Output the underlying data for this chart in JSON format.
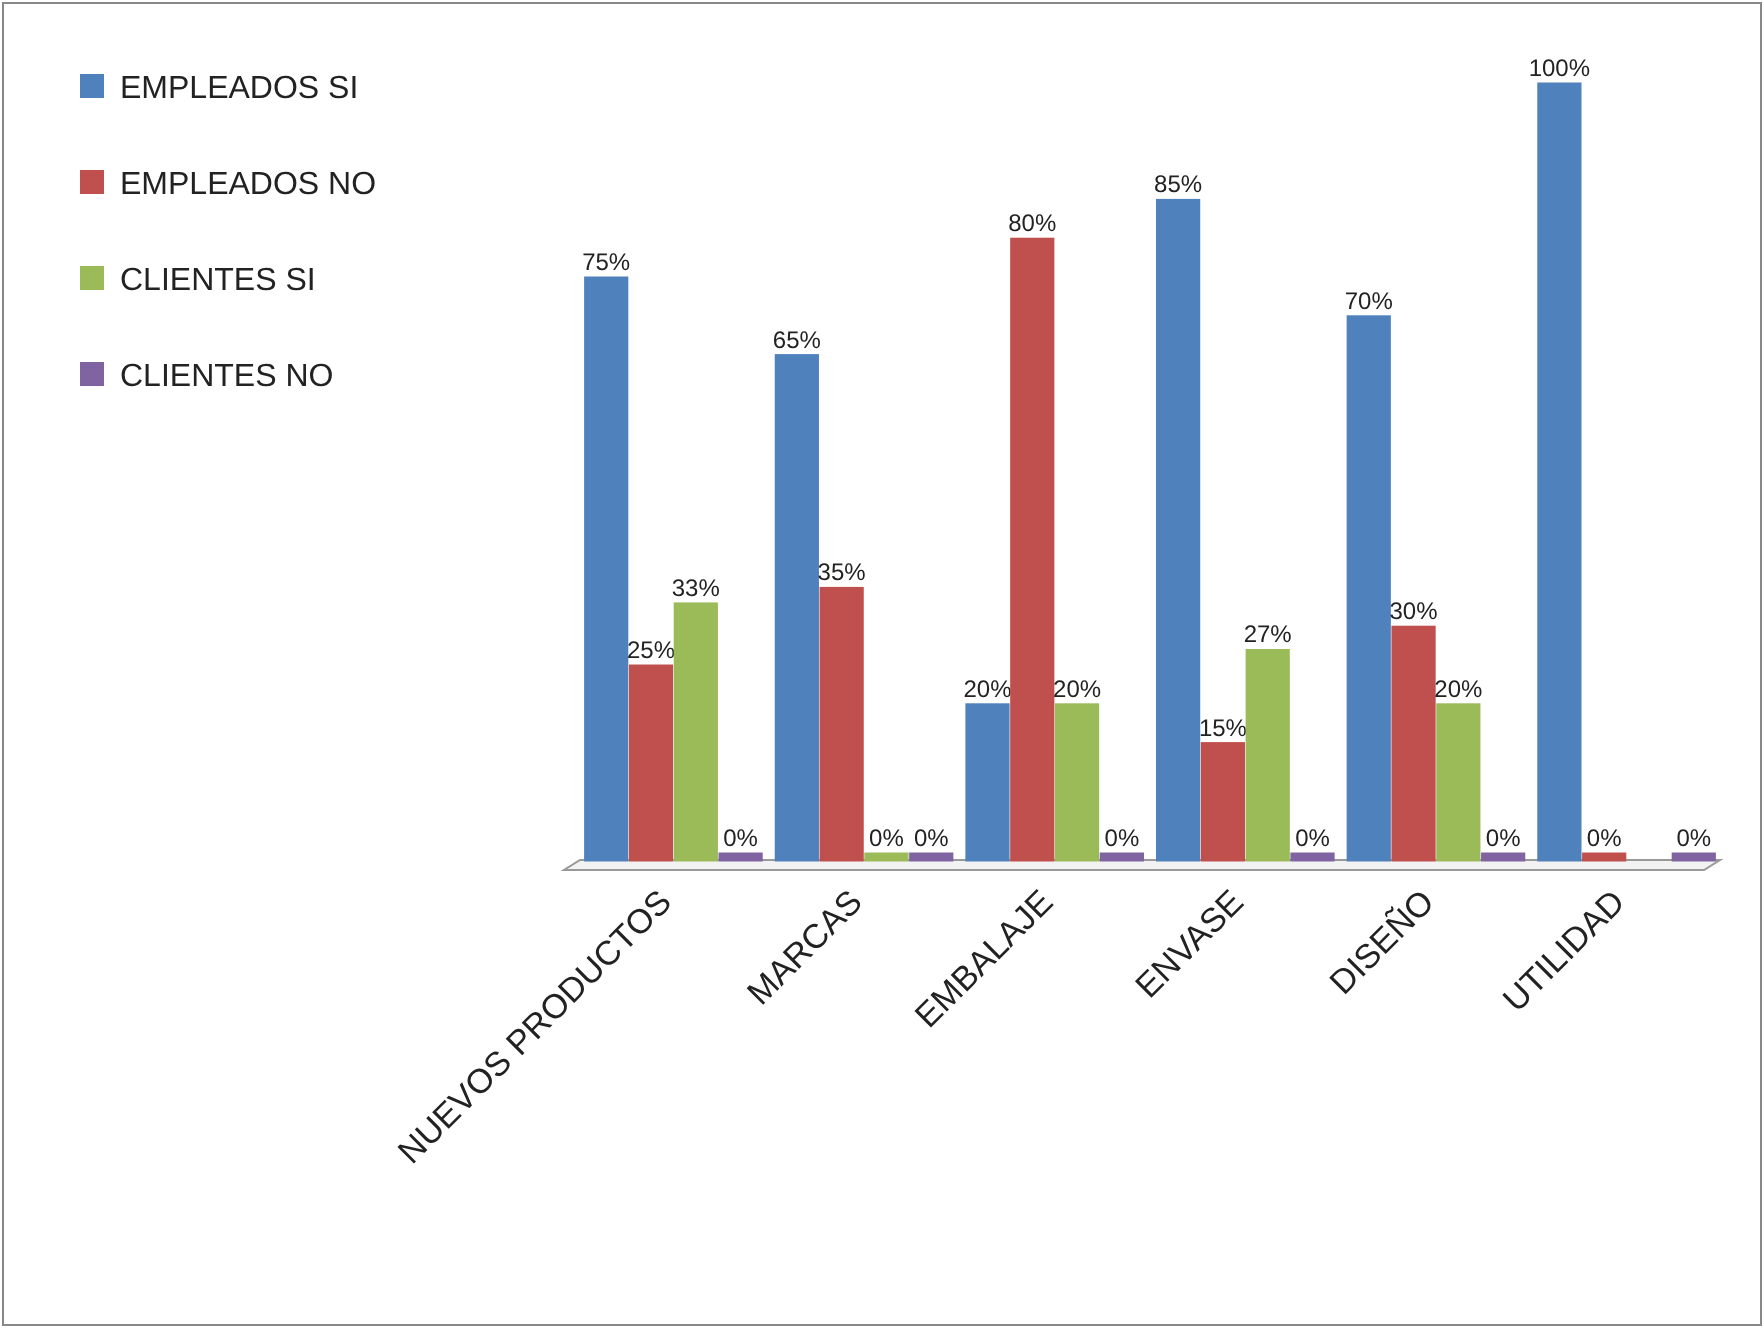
{
  "chart_data": {
    "type": "bar",
    "categories": [
      "NUEVOS PRODUCTOS",
      "MARCAS",
      "EMBALAJE",
      "ENVASE",
      "DISEÑO",
      "UTILIDAD"
    ],
    "series": [
      {
        "name": "EMPLEADOS  SI",
        "color": "#4f81bd",
        "values": [
          75,
          65,
          20,
          85,
          70,
          100
        ],
        "value_labels": [
          "75%",
          "65%",
          "20%",
          "85%",
          "70%",
          "100%"
        ]
      },
      {
        "name": "EMPLEADOS NO",
        "color": "#c0504d",
        "values": [
          25,
          35,
          80,
          15,
          30,
          0
        ],
        "value_labels": [
          "25%",
          "35%",
          "80%",
          "15%",
          "30%",
          "0%"
        ]
      },
      {
        "name": "CLIENTES SI",
        "color": "#9bbb59",
        "values": [
          33,
          0,
          20,
          27,
          20,
          null
        ],
        "value_labels": [
          "33%",
          "0%",
          "20%",
          "27%",
          "20%",
          null
        ]
      },
      {
        "name": "CLIENTES NO",
        "color": "#8064a2",
        "values": [
          0,
          0,
          0,
          0,
          0,
          0
        ],
        "value_labels": [
          "0%",
          "0%",
          "0%",
          "0%",
          "0%",
          "0%"
        ]
      }
    ],
    "ylim": [
      0,
      100
    ],
    "tick_labels": "x",
    "legend": "top left"
  }
}
